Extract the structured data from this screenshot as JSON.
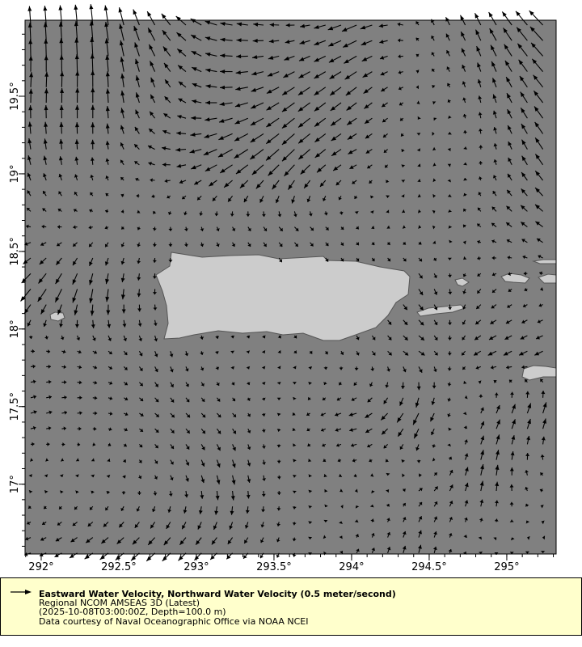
{
  "chart_data": {
    "type": "vector-map",
    "legend": {
      "title": "Eastward Water Velocity, Northward Water Velocity (0.5 meter/second)",
      "lines": [
        "Regional NCOM AMSEAS 3D (Latest)",
        "(2025-10-08T03:00:00Z, Depth=100.0 m)",
        "Data courtesy of Naval Oceanographic Office via NOAA NCEI"
      ],
      "reference_speed": 0.5,
      "reference_units": "meter/second"
    },
    "x_ticks": [
      "292°",
      "292.5°",
      "293°",
      "293.5°",
      "294°",
      "294.5°",
      "295°"
    ],
    "x_tick_values": [
      292,
      292.5,
      293,
      293.5,
      294,
      294.5,
      295
    ],
    "y_ticks": [
      "17°",
      "17.5°",
      "18°",
      "18.5°",
      "19°",
      "19.5°"
    ],
    "y_tick_values": [
      17,
      17.5,
      18,
      18.5,
      19,
      19.5
    ],
    "xlim": [
      291.896,
      295.318
    ],
    "ylim": [
      16.55,
      19.99
    ],
    "colors": {
      "ocean": "#808080",
      "land": "#cccccc",
      "coast": "#555555",
      "arrow": "#000000",
      "legend_bg": "#ffffcc"
    },
    "vector_field": {
      "lons": [
        291.95,
        292.367,
        292.783,
        293.2,
        293.617,
        294.033,
        294.45,
        294.867,
        295.283
      ],
      "lats": [
        19.95,
        19.53,
        19.11,
        18.69,
        18.27,
        17.85,
        17.43,
        17.01,
        16.59
      ],
      "u": [
        [
          -0.03,
          -0.05,
          -0.2,
          -0.3,
          -0.2,
          -0.35,
          -0.05,
          -0.15,
          -0.35
        ],
        [
          0.02,
          0,
          -0.1,
          -0.3,
          -0.3,
          -0.25,
          -0.05,
          -0.05,
          -0.25
        ],
        [
          -0.05,
          0,
          -0.2,
          -0.35,
          -0.3,
          -0.2,
          0.05,
          0,
          -0.2
        ],
        [
          -0.1,
          -0.1,
          0,
          0.05,
          0.1,
          0.05,
          0.05,
          -0.1,
          -0.2
        ],
        [
          -0.25,
          -0.05,
          0,
          0.05,
          0.05,
          0.05,
          0.1,
          -0.1,
          -0.05
        ],
        [
          0.1,
          0.1,
          0.05,
          0,
          0.05,
          0.05,
          0.15,
          -0.2,
          -0.2
        ],
        [
          0.15,
          0.1,
          0.1,
          0.1,
          -0.05,
          -0.2,
          -0.15,
          0.1,
          0.1
        ],
        [
          0,
          0,
          0.05,
          0.05,
          0,
          -0.05,
          0.1,
          0.05,
          -0.1
        ],
        [
          -0.15,
          -0.2,
          -0.2,
          -0.15,
          -0.02,
          0.05,
          0.05,
          0,
          0
        ]
      ],
      "v": [
        [
          0.45,
          0.5,
          0.3,
          0.05,
          0,
          -0.15,
          0.1,
          0.3,
          0.35
        ],
        [
          0.35,
          0.4,
          0.2,
          0,
          -0.2,
          -0.2,
          0,
          0.2,
          0.3
        ],
        [
          0.25,
          0.2,
          0.05,
          -0.2,
          -0.3,
          -0.1,
          -0.05,
          0.1,
          0.3
        ],
        [
          0.05,
          0,
          -0.1,
          -0.1,
          -0.1,
          -0.05,
          0,
          0.1,
          0.15
        ],
        [
          -0.3,
          -0.35,
          -0.1,
          -0.1,
          -0.1,
          -0.1,
          -0.15,
          -0.1,
          0
        ],
        [
          0,
          -0.05,
          -0.15,
          -0.05,
          -0.05,
          -0.1,
          -0.1,
          -0.1,
          -0.1
        ],
        [
          0.05,
          0,
          -0.1,
          -0.1,
          -0.05,
          -0.05,
          -0.3,
          0.2,
          0.3
        ],
        [
          -0.05,
          -0.05,
          -0.1,
          -0.25,
          -0.05,
          -0.02,
          0.05,
          0.3,
          0
        ],
        [
          -0.05,
          -0.15,
          -0.2,
          -0.15,
          -0.1,
          0.1,
          0.2,
          -0.05,
          0
        ]
      ]
    }
  }
}
